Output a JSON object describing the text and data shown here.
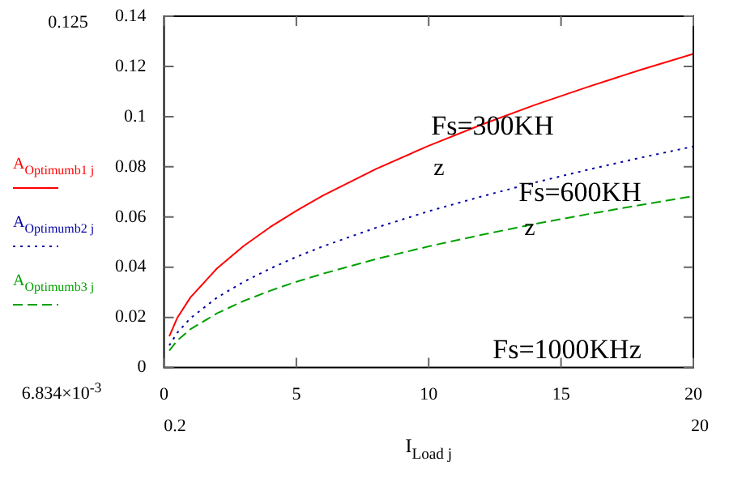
{
  "chart_data": {
    "type": "line",
    "xlabel": "I$_{Load j}$",
    "x": [
      0.2,
      0.5,
      1,
      2,
      3,
      4,
      5,
      6,
      8,
      10,
      12,
      14,
      16,
      18,
      20
    ],
    "series": [
      {
        "name": "A$_{Optimumb1 j}$",
        "color": "#ff0000",
        "line_style": "solid",
        "values": [
          0.0125,
          0.0198,
          0.028,
          0.0395,
          0.0484,
          0.0559,
          0.0625,
          0.0685,
          0.0791,
          0.0884,
          0.0968,
          0.1046,
          0.1118,
          0.1186,
          0.125
        ]
      },
      {
        "name": "A$_{Optimumb2 j}$",
        "color": "#0000a0",
        "line_style": "dotted",
        "values": [
          0.0088,
          0.0139,
          0.0197,
          0.0279,
          0.0341,
          0.0394,
          0.0441,
          0.0483,
          0.0557,
          0.0623,
          0.0682,
          0.0737,
          0.0788,
          0.0836,
          0.0881
        ]
      },
      {
        "name": "A$_{Optimumb3 j}$",
        "color": "#00a000",
        "line_style": "dashed",
        "values": [
          0.0068,
          0.0108,
          0.0153,
          0.0216,
          0.0265,
          0.0306,
          0.0342,
          0.0374,
          0.0432,
          0.0483,
          0.0529,
          0.0572,
          0.0611,
          0.0648,
          0.0683
        ]
      }
    ],
    "xlim": [
      0,
      20
    ],
    "xticks": [
      0,
      5,
      10,
      15,
      20
    ],
    "ylim": [
      0,
      0.14
    ],
    "yticks": [
      0,
      0.02,
      0.04,
      0.06,
      0.08,
      0.1,
      0.12,
      0.14
    ],
    "grid": false,
    "legend": "left",
    "marker": "none",
    "annotations": [
      "Fs=300KH",
      "z",
      "Fs=600KH",
      "z",
      "Fs=1000KHz",
      "0.125",
      "6.834×10$^{-3}$",
      "0.2",
      "20"
    ]
  }
}
